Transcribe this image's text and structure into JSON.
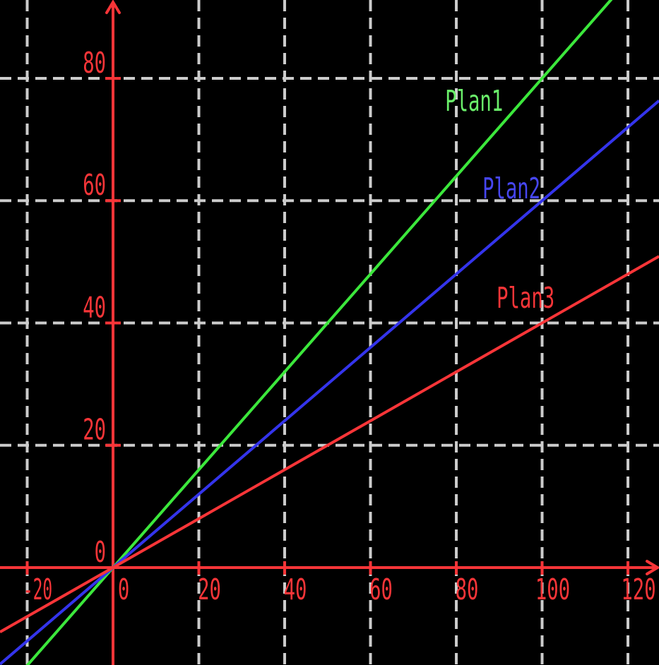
{
  "figure": {
    "background": "#000000"
  },
  "chart_data": {
    "type": "line",
    "title": "",
    "xlabel": "",
    "ylabel": "",
    "xlim": [
      -26.34,
      127.24
    ],
    "ylim": [
      -15.93,
      92.81
    ],
    "grid": {
      "on": true,
      "color": "#cccccc",
      "style": "dashed",
      "x_gridlines": [
        -20,
        20,
        40,
        60,
        80,
        100,
        120
      ],
      "y_gridlines": [
        20,
        40,
        60,
        80
      ]
    },
    "axes": {
      "color": "#f83538",
      "tick_label_color": "#f83538",
      "x_ticks": [
        -20,
        0,
        20,
        40,
        60,
        80,
        100,
        120
      ],
      "x_tick_labels": [
        "-20",
        "0",
        "20",
        "40",
        "60",
        "80",
        "100",
        "120"
      ],
      "x_tick_marks": [
        -20,
        20,
        40,
        60,
        80,
        100,
        120
      ],
      "y_ticks": [
        0,
        20,
        40,
        60,
        80
      ],
      "y_tick_labels": [
        "0",
        "20",
        "40",
        "60",
        "80"
      ],
      "y_tick_marks": [
        20,
        40,
        60,
        80
      ]
    },
    "series": [
      {
        "name": "Plan1",
        "equation": "y = 0.8x",
        "slope": 0.8,
        "intercept": 0,
        "color": "#3ce83c",
        "points": [
          [
            0,
            0
          ],
          [
            50,
            40
          ],
          [
            100,
            80
          ]
        ],
        "label": {
          "text": "Plan1",
          "color": "#6aef6a",
          "x": 77.4,
          "y": 74.7
        }
      },
      {
        "name": "Plan2",
        "equation": "y = 0.6x",
        "slope": 0.6,
        "intercept": 0,
        "color": "#3434ec",
        "points": [
          [
            0,
            0
          ],
          [
            50,
            30
          ],
          [
            100,
            60
          ]
        ],
        "label": {
          "text": "Plan2",
          "color": "#4646f0",
          "x": 86.1,
          "y": 60.4
        }
      },
      {
        "name": "Plan3",
        "equation": "y = 0.4x",
        "slope": 0.4,
        "intercept": 0,
        "color": "#f83538",
        "points": [
          [
            0,
            0
          ],
          [
            50,
            20
          ],
          [
            100,
            40
          ]
        ],
        "label": {
          "text": "Plan3",
          "color": "#f83538",
          "x": 89.4,
          "y": 42.5
        }
      }
    ],
    "legend": {
      "visible": false,
      "position": "inline-labels"
    }
  }
}
